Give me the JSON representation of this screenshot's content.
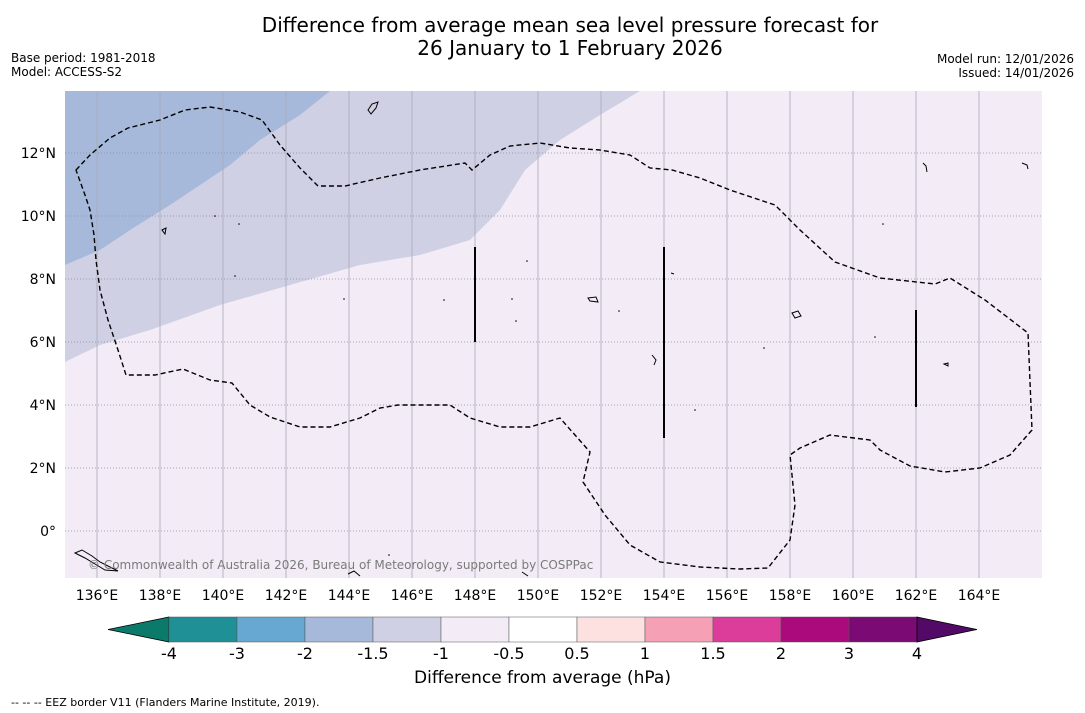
{
  "title": {
    "line1": "Difference from average mean sea level pressure forecast for",
    "line2": "26 January to 1 February 2026"
  },
  "meta_left": {
    "base_period": "Base period: 1981-2018",
    "model": "Model: ACCESS-S2"
  },
  "meta_right": {
    "model_run": "Model run: 12/01/2026",
    "issued": "Issued: 14/01/2026"
  },
  "map": {
    "lon_labels": [
      "136°E",
      "138°E",
      "140°E",
      "142°E",
      "144°E",
      "146°E",
      "148°E",
      "150°E",
      "152°E",
      "154°E",
      "156°E",
      "158°E",
      "160°E",
      "162°E",
      "164°E"
    ],
    "lat_labels": [
      "12°N",
      "10°N",
      "8°N",
      "6°N",
      "4°N",
      "2°N",
      "0°"
    ],
    "copyright": "© Commonwealth of Australia 2026, Bureau of Meteorology, supported by COSPPac",
    "shading_colors": {
      "minus_2_to_minus_1_5": "#a7b9da",
      "minus_1_5_to_minus_1": "#cfd0e4",
      "minus_1_to_minus_0_5": "#f3ecf6"
    }
  },
  "colorbar": {
    "tick_labels": [
      "-4",
      "-3",
      "-2",
      "-1.5",
      "-1",
      "-0.5",
      "0.5",
      "1",
      "1.5",
      "2",
      "3",
      "4"
    ],
    "colors": [
      "#0c7a6a",
      "#1f9096",
      "#66a8d2",
      "#a7b9da",
      "#cfd0e4",
      "#f3ecf6",
      "#ffffff",
      "#fde0e0",
      "#f6a0b6",
      "#dc3c9a",
      "#ab0a7c",
      "#7c0a74",
      "#520a66"
    ],
    "label": "Difference from average (hPa)"
  },
  "footnote": "--  --  -- EEZ border V11 (Flanders Marine Institute, 2019)."
}
